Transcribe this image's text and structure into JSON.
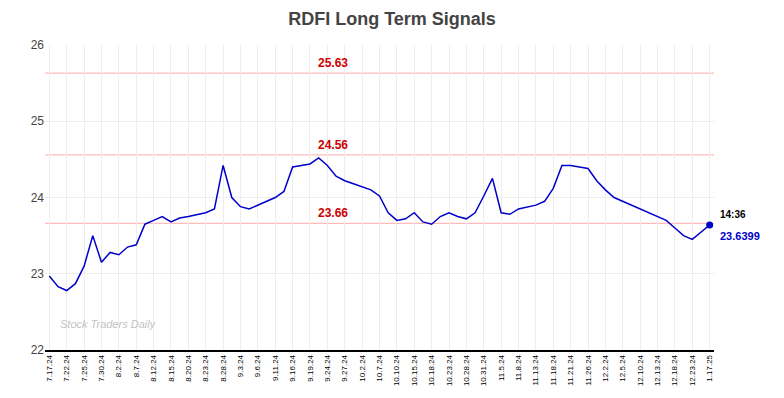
{
  "chart_data": {
    "type": "line",
    "title": "RDFI Long Term Signals",
    "categories": [
      "7.17.24",
      null,
      "7.22.24",
      null,
      "7.25.24",
      null,
      "7.30.24",
      null,
      "8.2.24",
      null,
      "8.7.24",
      null,
      "8.12.24",
      null,
      "8.15.24",
      null,
      "8.20.24",
      null,
      "8.23.24",
      null,
      "8.28.24",
      null,
      "9.3.24",
      null,
      "9.6.24",
      null,
      "9.11.24",
      null,
      "9.16.24",
      null,
      "9.19.24",
      null,
      "9.24.24",
      null,
      "9.27.24",
      null,
      "10.2.24",
      null,
      "10.7.24",
      null,
      "10.10.24",
      null,
      "10.15.24",
      null,
      "10.18.24",
      null,
      "10.23.24",
      null,
      "10.28.24",
      null,
      "10.31.24",
      null,
      "11.5.24",
      null,
      "11.8.24",
      null,
      "11.13.24",
      null,
      "11.18.24",
      null,
      "11.21.24",
      null,
      "11.26.24",
      null,
      "12.2.24",
      null,
      "12.5.24",
      null,
      "12.10.24",
      null,
      "12.13.24",
      null,
      "12.18.24",
      null,
      "12.23.24",
      null,
      "1.17.25"
    ],
    "series": [
      {
        "color": "#0000cc",
        "values": [
          22.97,
          22.83,
          22.78,
          22.87,
          23.1,
          23.5,
          23.15,
          23.28,
          23.25,
          23.35,
          23.38,
          23.65,
          23.7,
          23.75,
          23.68,
          23.73,
          23.75,
          23.78,
          23.8,
          23.85,
          24.42,
          24.0,
          23.88,
          23.85,
          23.9,
          23.95,
          24.0,
          24.08,
          24.4,
          24.42,
          24.44,
          24.52,
          24.42,
          24.28,
          24.22,
          24.18,
          24.14,
          24.1,
          24.02,
          23.8,
          23.7,
          23.72,
          23.8,
          23.68,
          23.65,
          23.75,
          23.8,
          23.75,
          23.72,
          23.8,
          24.02,
          24.25,
          23.8,
          23.78,
          23.85,
          23.88,
          23.9,
          23.95,
          24.12,
          24.42,
          24.42,
          24.4,
          24.38,
          24.22,
          24.1,
          24.0,
          23.95,
          23.9,
          23.85,
          23.8,
          23.75,
          23.7,
          23.6,
          23.5,
          23.45,
          23.55,
          23.6399
        ]
      }
    ],
    "ylim": [
      22,
      26
    ],
    "yticks": [
      22,
      23,
      24,
      25,
      26
    ],
    "grid": true,
    "hlines": [
      {
        "y": 25.63,
        "label": "25.63",
        "color": "#ffbbbb",
        "label_color": "#cc0000"
      },
      {
        "y": 24.56,
        "label": "24.56",
        "color": "#ffbbbb",
        "label_color": "#cc0000"
      },
      {
        "y": 23.66,
        "label": "23.66",
        "color": "#ffbbbb",
        "label_color": "#cc0000"
      }
    ],
    "last_point_label": "14:36",
    "watermark": "Stock Traders Daily"
  }
}
